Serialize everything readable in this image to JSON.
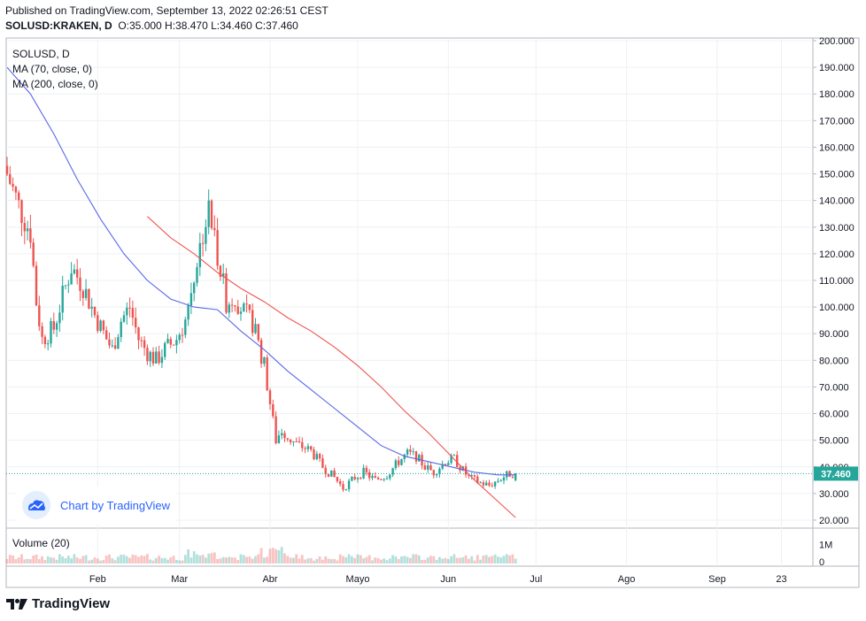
{
  "header": {
    "published": "Published on TradingView.com, September 13, 2022 02:26:51 CEST",
    "symbol": "SOLUSD:KRAKEN, D",
    "ohlc": "O:35.000 H:38.470 L:34.460 C:37.460"
  },
  "legend": {
    "symbol": "SOLUSD, D",
    "ma70": "MA (70, close, 0)",
    "ma200": "MA (200, close, 0)",
    "volume": "Volume (20)"
  },
  "watermark": "Chart by TradingView",
  "footer_brand": "TradingView",
  "colors": {
    "up": "#26a69a",
    "down": "#ef5350",
    "ma70": "#5b67e8",
    "ma200": "#f0544f",
    "price_line": "#26a69a"
  },
  "chart_data": {
    "type": "candlestick",
    "y_ticks": [
      "200.000",
      "190.000",
      "180.000",
      "170.000",
      "160.000",
      "150.000",
      "140.000",
      "130.000",
      "120.000",
      "110.000",
      "100.000",
      "90.000",
      "80.000",
      "70.000",
      "60.000",
      "50.000",
      "40.000",
      "30.000",
      "20.000"
    ],
    "ylim": [
      17,
      201
    ],
    "x_ticks": [
      {
        "label": "Feb",
        "day": 31
      },
      {
        "label": "Mar",
        "day": 59
      },
      {
        "label": "Abr",
        "day": 90
      },
      {
        "label": "Mayo",
        "day": 120
      },
      {
        "label": "Jun",
        "day": 151
      },
      {
        "label": "Jul",
        "day": 181
      },
      {
        "label": "Ago",
        "day": 212
      },
      {
        "label": "Sep",
        "day": 243
      },
      {
        "label": "23",
        "day": 265
      }
    ],
    "last_price": "37.460",
    "last_close": 37.46,
    "volume_ticks": [
      "1M",
      "0"
    ],
    "volume_max": 1.4,
    "keyframes_close": [
      [
        0,
        150
      ],
      [
        4,
        138
      ],
      [
        8,
        128
      ],
      [
        10,
        102
      ],
      [
        12,
        88
      ],
      [
        16,
        92
      ],
      [
        19,
        104
      ],
      [
        22,
        115
      ],
      [
        26,
        108
      ],
      [
        30,
        97
      ],
      [
        34,
        88
      ],
      [
        36,
        84
      ],
      [
        39,
        95
      ],
      [
        42,
        100
      ],
      [
        45,
        88
      ],
      [
        48,
        83
      ],
      [
        51,
        80
      ],
      [
        54,
        84
      ],
      [
        58,
        88
      ],
      [
        61,
        95
      ],
      [
        64,
        112
      ],
      [
        67,
        128
      ],
      [
        69,
        136
      ],
      [
        71,
        126
      ],
      [
        73,
        114
      ],
      [
        75,
        102
      ],
      [
        78,
        104
      ],
      [
        81,
        98
      ],
      [
        84,
        94
      ],
      [
        86,
        86
      ],
      [
        88,
        78
      ],
      [
        90,
        64
      ],
      [
        92,
        50
      ],
      [
        94,
        54
      ],
      [
        97,
        50
      ],
      [
        100,
        48
      ],
      [
        104,
        46
      ],
      [
        108,
        40
      ],
      [
        112,
        36
      ],
      [
        115,
        32
      ],
      [
        117,
        34
      ],
      [
        119,
        36
      ],
      [
        122,
        38
      ],
      [
        126,
        35
      ],
      [
        130,
        37
      ],
      [
        134,
        42
      ],
      [
        137,
        45
      ],
      [
        140,
        44
      ],
      [
        143,
        40
      ],
      [
        146,
        38
      ],
      [
        150,
        42
      ],
      [
        153,
        43
      ],
      [
        155,
        40
      ],
      [
        158,
        36
      ],
      [
        162,
        34
      ],
      [
        165,
        33
      ],
      [
        168,
        35
      ],
      [
        171,
        37
      ],
      [
        174,
        38
      ]
    ],
    "ma70_points": [
      [
        0,
        190
      ],
      [
        8,
        180
      ],
      [
        16,
        165
      ],
      [
        24,
        148
      ],
      [
        32,
        133
      ],
      [
        40,
        120
      ],
      [
        48,
        110
      ],
      [
        56,
        103
      ],
      [
        64,
        100
      ],
      [
        72,
        99
      ],
      [
        80,
        91
      ],
      [
        88,
        84
      ],
      [
        96,
        76
      ],
      [
        104,
        69
      ],
      [
        112,
        62
      ],
      [
        120,
        55
      ],
      [
        128,
        48
      ],
      [
        136,
        44
      ],
      [
        144,
        42
      ],
      [
        152,
        40
      ],
      [
        160,
        38
      ],
      [
        168,
        37
      ],
      [
        174,
        37
      ]
    ],
    "ma200_points": [
      [
        48,
        134
      ],
      [
        56,
        126
      ],
      [
        64,
        120
      ],
      [
        72,
        113
      ],
      [
        80,
        107
      ],
      [
        88,
        102
      ],
      [
        96,
        96
      ],
      [
        104,
        91
      ],
      [
        112,
        85
      ],
      [
        120,
        78
      ],
      [
        128,
        70
      ],
      [
        136,
        61
      ],
      [
        144,
        53
      ],
      [
        152,
        44
      ],
      [
        160,
        35
      ],
      [
        168,
        27
      ],
      [
        174,
        21
      ]
    ]
  }
}
